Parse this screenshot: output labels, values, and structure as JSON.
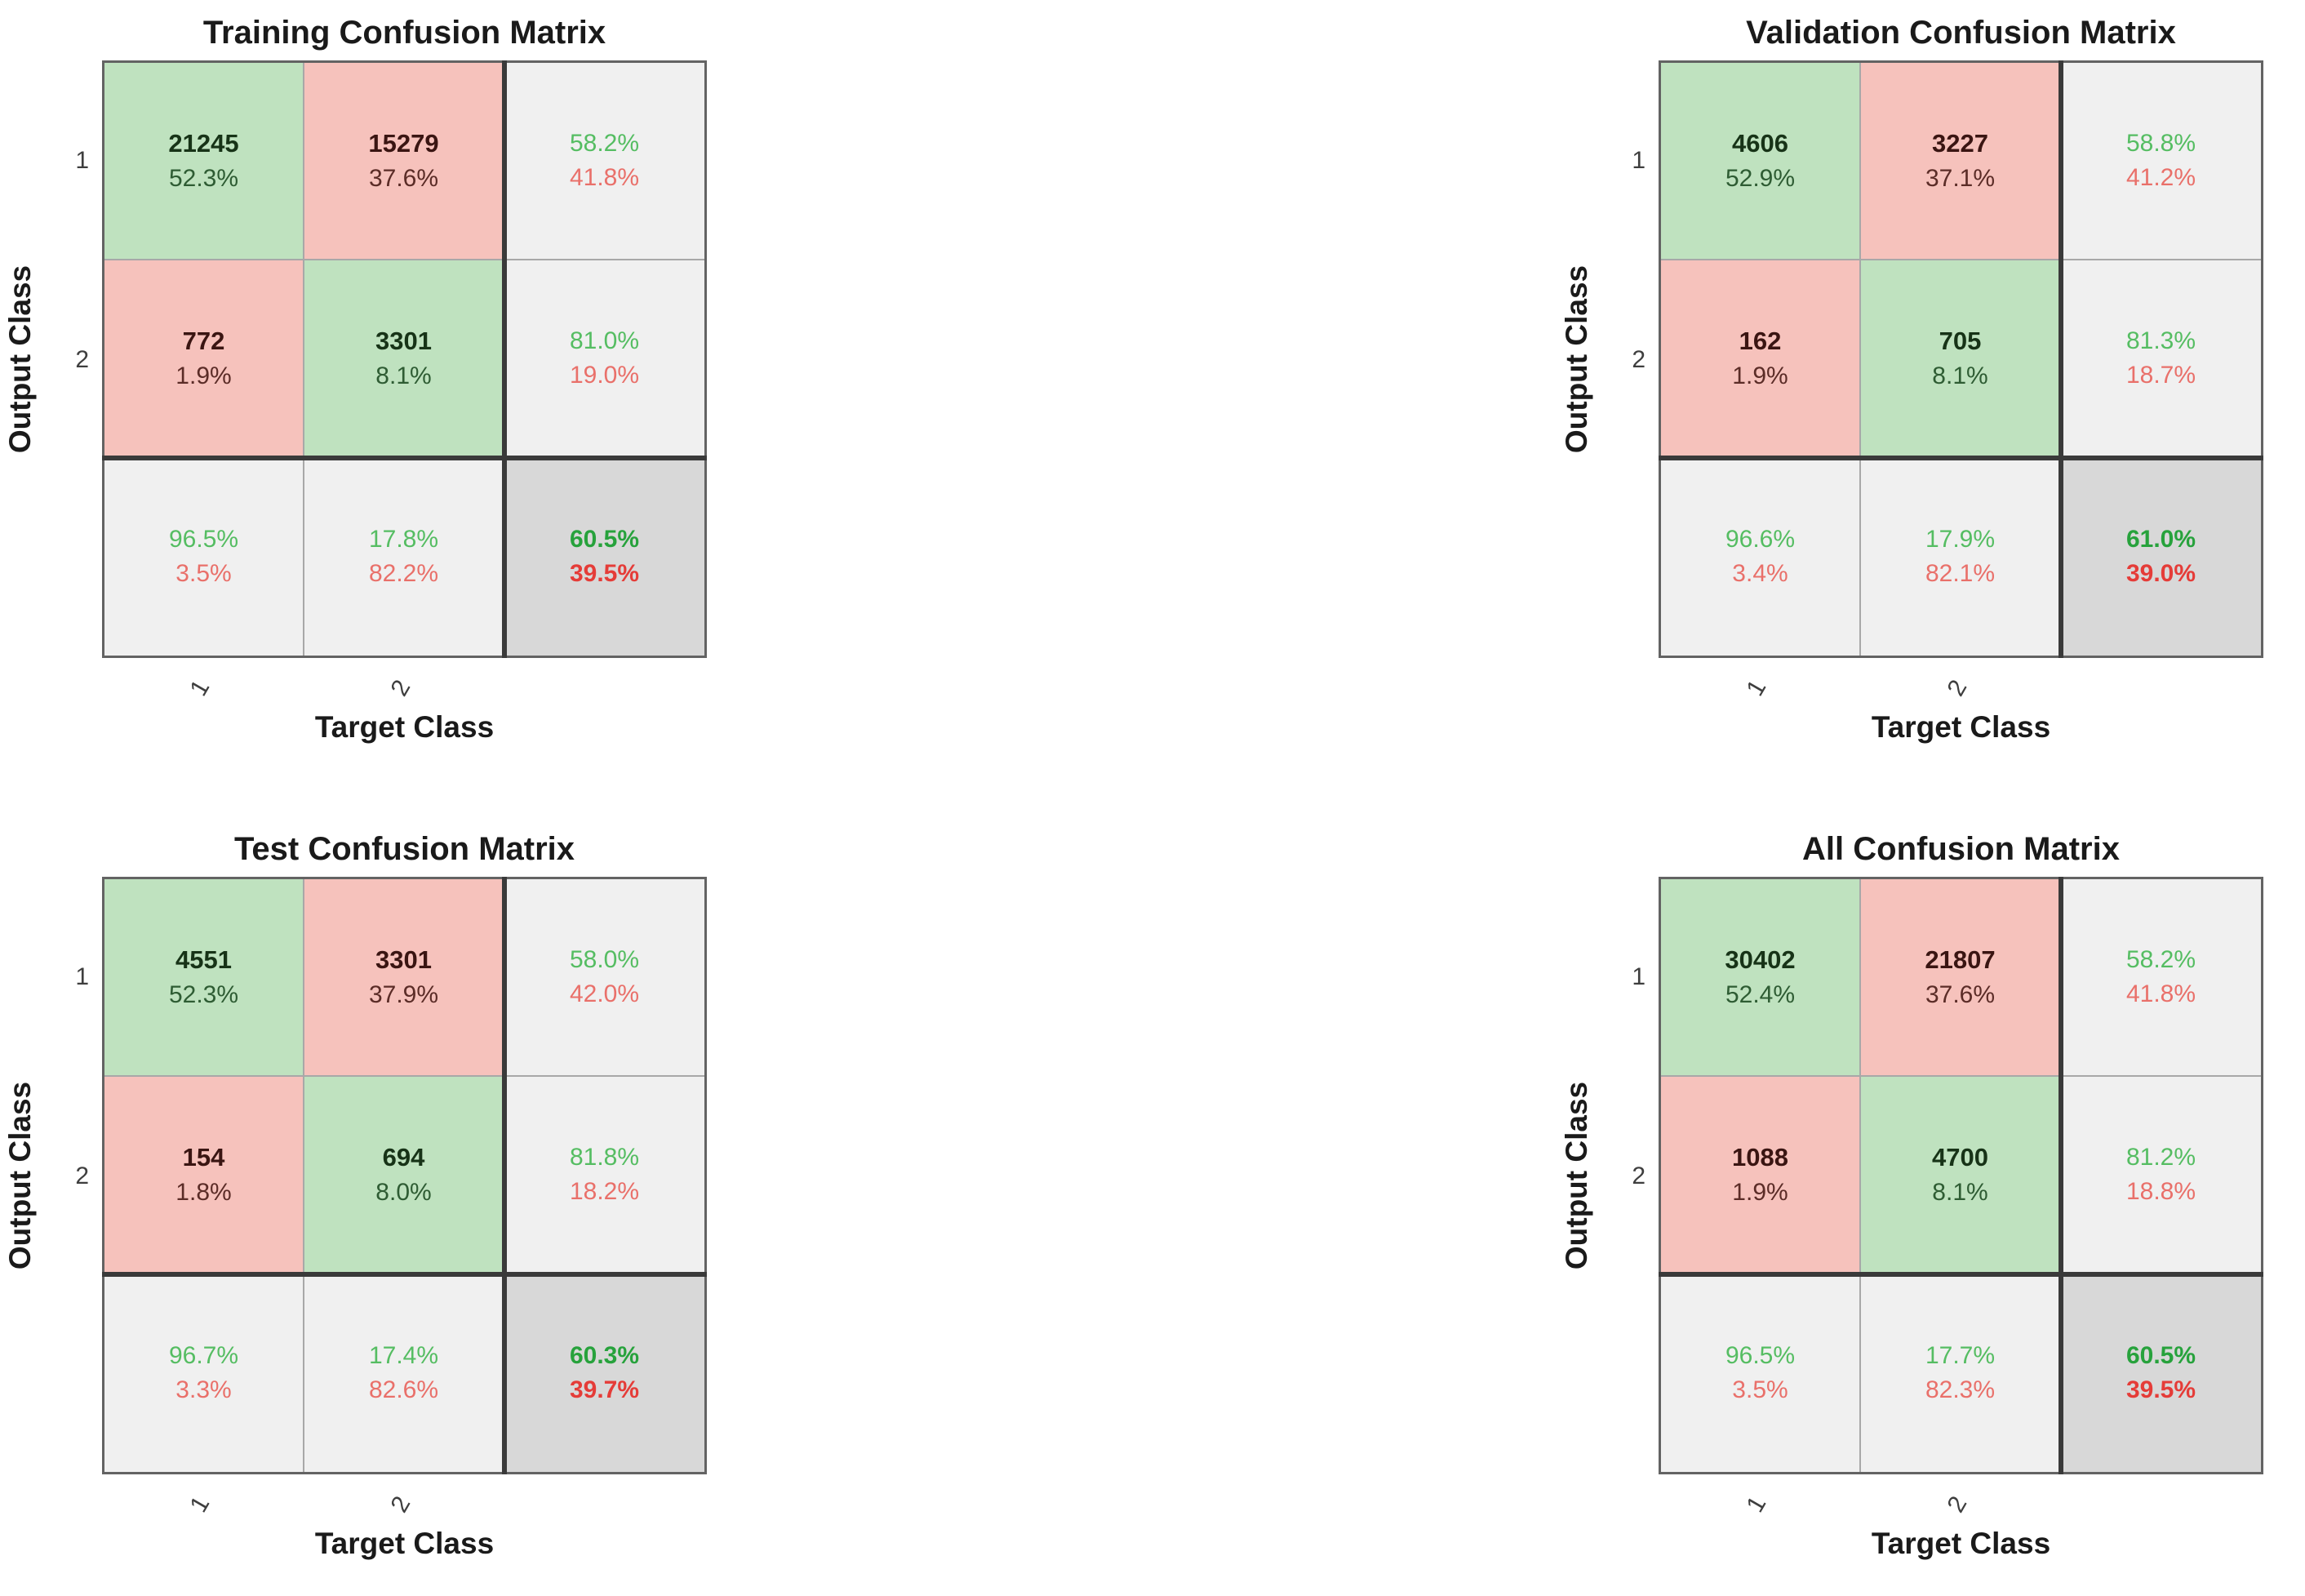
{
  "layout": {
    "grid": "2 rows x 2 columns of confusion matrix panels",
    "order": [
      "training",
      "validation",
      "test",
      "all"
    ]
  },
  "colors": {
    "correct_cell_green": "#bfe2bf",
    "incorrect_cell_pink": "#f6c2bc",
    "summary_cell_gray": "#f0f0f0",
    "overall_cell_gray": "#d8d8d8",
    "summary_text_green": "#55bd62",
    "summary_text_red": "#e9706a",
    "overall_text_green": "#27a23c",
    "overall_text_red": "#e53c38",
    "separator_dark": "#3a3a3a"
  },
  "chart_data": [
    {
      "id": "training",
      "type": "heatmap",
      "title": "Training Confusion Matrix",
      "xlabel": "Target Class",
      "ylabel": "Output Class",
      "classes": [
        "1",
        "2"
      ],
      "x_tick_labels": [
        "1",
        "2"
      ],
      "y_tick_labels": [
        "1",
        "2"
      ],
      "counts": [
        [
          21245,
          15279
        ],
        [
          772,
          3301
        ]
      ],
      "count_pct": [
        [
          "52.3%",
          "37.6%"
        ],
        [
          "1.9%",
          "8.1%"
        ]
      ],
      "row_summary_pct": [
        [
          "58.2%",
          "41.8%"
        ],
        [
          "81.0%",
          "19.0%"
        ]
      ],
      "col_summary_pct": [
        [
          "96.5%",
          "3.5%"
        ],
        [
          "17.8%",
          "82.2%"
        ]
      ],
      "overall_pct": [
        "60.5%",
        "39.5%"
      ]
    },
    {
      "id": "validation",
      "type": "heatmap",
      "title": "Validation Confusion Matrix",
      "xlabel": "Target Class",
      "ylabel": "Output Class",
      "classes": [
        "1",
        "2"
      ],
      "x_tick_labels": [
        "1",
        "2"
      ],
      "y_tick_labels": [
        "1",
        "2"
      ],
      "counts": [
        [
          4606,
          3227
        ],
        [
          162,
          705
        ]
      ],
      "count_pct": [
        [
          "52.9%",
          "37.1%"
        ],
        [
          "1.9%",
          "8.1%"
        ]
      ],
      "row_summary_pct": [
        [
          "58.8%",
          "41.2%"
        ],
        [
          "81.3%",
          "18.7%"
        ]
      ],
      "col_summary_pct": [
        [
          "96.6%",
          "3.4%"
        ],
        [
          "17.9%",
          "82.1%"
        ]
      ],
      "overall_pct": [
        "61.0%",
        "39.0%"
      ]
    },
    {
      "id": "test",
      "type": "heatmap",
      "title": "Test Confusion Matrix",
      "xlabel": "Target Class",
      "ylabel": "Output Class",
      "classes": [
        "1",
        "2"
      ],
      "x_tick_labels": [
        "1",
        "2"
      ],
      "y_tick_labels": [
        "1",
        "2"
      ],
      "counts": [
        [
          4551,
          3301
        ],
        [
          154,
          694
        ]
      ],
      "count_pct": [
        [
          "52.3%",
          "37.9%"
        ],
        [
          "1.8%",
          "8.0%"
        ]
      ],
      "row_summary_pct": [
        [
          "58.0%",
          "42.0%"
        ],
        [
          "81.8%",
          "18.2%"
        ]
      ],
      "col_summary_pct": [
        [
          "96.7%",
          "3.3%"
        ],
        [
          "17.4%",
          "82.6%"
        ]
      ],
      "overall_pct": [
        "60.3%",
        "39.7%"
      ]
    },
    {
      "id": "all",
      "type": "heatmap",
      "title": "All Confusion Matrix",
      "xlabel": "Target Class",
      "ylabel": "Output Class",
      "classes": [
        "1",
        "2"
      ],
      "x_tick_labels": [
        "1",
        "2"
      ],
      "y_tick_labels": [
        "1",
        "2"
      ],
      "counts": [
        [
          30402,
          21807
        ],
        [
          1088,
          4700
        ]
      ],
      "count_pct": [
        [
          "52.4%",
          "37.6%"
        ],
        [
          "1.9%",
          "8.1%"
        ]
      ],
      "row_summary_pct": [
        [
          "58.2%",
          "41.8%"
        ],
        [
          "81.2%",
          "18.8%"
        ]
      ],
      "col_summary_pct": [
        [
          "96.5%",
          "3.5%"
        ],
        [
          "17.7%",
          "82.3%"
        ]
      ],
      "overall_pct": [
        "60.5%",
        "39.5%"
      ]
    }
  ]
}
